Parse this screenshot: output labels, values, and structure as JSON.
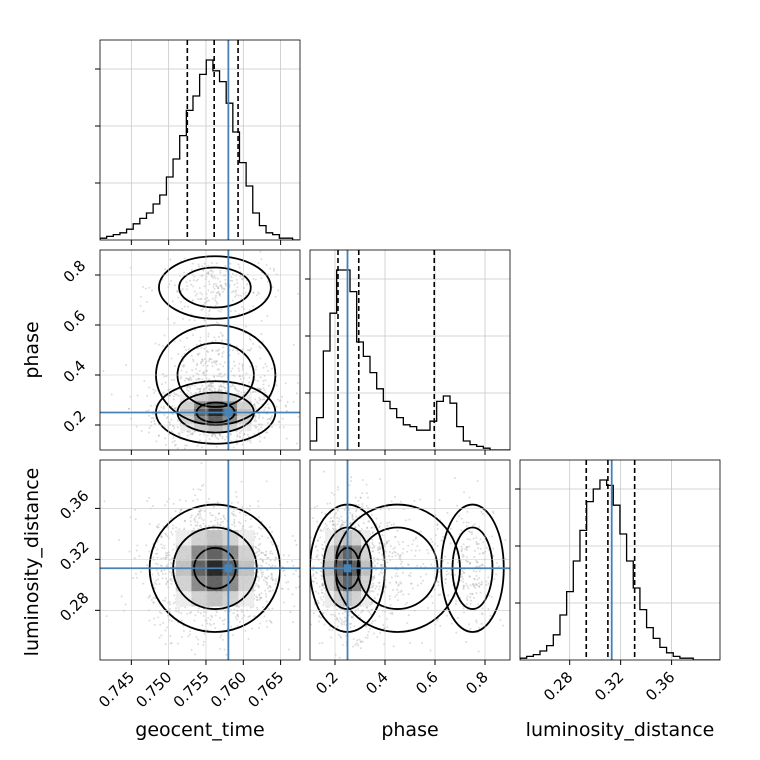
{
  "chart_data": {
    "type": "corner",
    "parameters": [
      "geocent_time",
      "phase",
      "luminosity_distance"
    ],
    "truths": {
      "geocent_time": 0.758,
      "phase": 0.25,
      "luminosity_distance": 0.313
    },
    "ranges": {
      "geocent_time": [
        0.7408,
        0.7676
      ],
      "phase": [
        0.1,
        0.9
      ],
      "luminosity_distance": [
        0.241,
        0.398
      ]
    },
    "ticks": {
      "geocent_time": [
        0.745,
        0.75,
        0.755,
        0.76,
        0.765
      ],
      "phase": [
        0.2,
        0.4,
        0.6,
        0.8
      ],
      "luminosity_distance": [
        0.28,
        0.32,
        0.36
      ]
    },
    "tick_labels": {
      "geocent_time": [
        "0.745",
        "0.750",
        "0.755",
        "0.760",
        "0.765"
      ],
      "phase": [
        "0.2",
        "0.4",
        "0.6",
        "0.8"
      ],
      "luminosity_distance": [
        "0.28",
        "0.32",
        "0.36"
      ]
    },
    "quantiles": {
      "geocent_time": [
        0.7525,
        0.7561,
        0.7593
      ],
      "phase": [
        0.212,
        0.295,
        0.597
      ],
      "luminosity_distance": [
        0.293,
        0.31,
        0.331
      ]
    },
    "histograms": {
      "geocent_time": {
        "edges_start": 0.7408,
        "bin_width": 0.00089,
        "counts": [
          1,
          2,
          3,
          4,
          6,
          9,
          12,
          15,
          20,
          25,
          35,
          45,
          58,
          72,
          80,
          92,
          100,
          94,
          88,
          76,
          60,
          43,
          30,
          15,
          8,
          4,
          3,
          1,
          1,
          0
        ]
      },
      "phase": {
        "edges_start": 0.1,
        "bin_width": 0.02667,
        "counts": [
          5,
          18,
          55,
          76,
          100,
          100,
          88,
          60,
          52,
          43,
          34,
          27,
          23,
          18,
          14,
          13,
          11,
          11,
          16,
          27,
          30,
          26,
          13,
          5,
          3,
          2,
          1,
          0,
          0,
          0
        ]
      },
      "luminosity_distance": {
        "edges_start": 0.241,
        "bin_width": 0.00523,
        "counts": [
          1,
          2,
          3,
          5,
          8,
          14,
          25,
          38,
          55,
          72,
          88,
          95,
          100,
          97,
          86,
          70,
          55,
          40,
          28,
          18,
          12,
          7,
          4,
          2,
          1,
          1,
          0,
          0,
          0,
          0
        ]
      }
    },
    "axis_labels": {
      "geocent_time": "geocent_time",
      "phase": "phase",
      "luminosity_distance": "luminosity_distance"
    },
    "grid": true,
    "colors": {
      "truth": "#4682b4",
      "hist": "#000000",
      "points": "#9a9a9a",
      "grid": "#c8c8c8"
    }
  }
}
